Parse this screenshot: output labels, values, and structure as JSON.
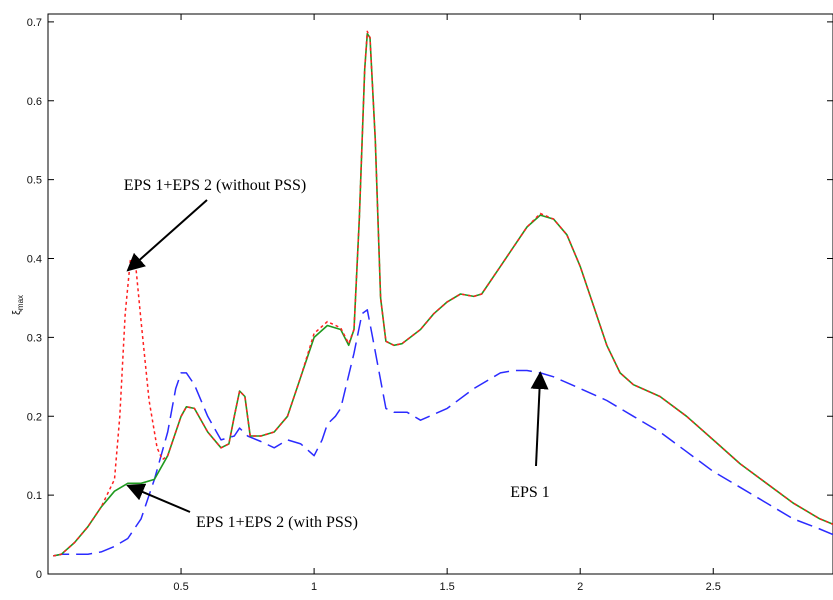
{
  "chart_data": {
    "type": "line",
    "title": "",
    "xlabel": "",
    "ylabel": "ξ",
    "ylabel_sub": "max",
    "xlim": [
      0,
      2.95
    ],
    "ylim": [
      0,
      0.71
    ],
    "grid": false,
    "x_ticks": [
      0.5,
      1,
      1.5,
      2,
      2.5
    ],
    "x_tick_labels": [
      "0.5",
      "1",
      "1.5",
      "2",
      "2.5"
    ],
    "y_ticks": [
      0,
      0.1,
      0.2,
      0.3,
      0.4,
      0.5,
      0.6,
      0.7
    ],
    "y_tick_labels": [
      "0",
      "0.1",
      "0.2",
      "0.3",
      "0.4",
      "0.5",
      "0.6",
      "0.7"
    ],
    "series": [
      {
        "name": "EPS 1",
        "color": "#2b2bff",
        "style": "dashed",
        "points": [
          [
            0.02,
            0.023
          ],
          [
            0.05,
            0.025
          ],
          [
            0.1,
            0.025
          ],
          [
            0.15,
            0.025
          ],
          [
            0.2,
            0.028
          ],
          [
            0.25,
            0.035
          ],
          [
            0.3,
            0.045
          ],
          [
            0.35,
            0.07
          ],
          [
            0.4,
            0.12
          ],
          [
            0.45,
            0.18
          ],
          [
            0.48,
            0.235
          ],
          [
            0.5,
            0.255
          ],
          [
            0.52,
            0.255
          ],
          [
            0.55,
            0.24
          ],
          [
            0.6,
            0.2
          ],
          [
            0.65,
            0.17
          ],
          [
            0.7,
            0.175
          ],
          [
            0.72,
            0.185
          ],
          [
            0.75,
            0.175
          ],
          [
            0.8,
            0.168
          ],
          [
            0.85,
            0.16
          ],
          [
            0.9,
            0.17
          ],
          [
            0.95,
            0.165
          ],
          [
            1.0,
            0.15
          ],
          [
            1.03,
            0.17
          ],
          [
            1.05,
            0.19
          ],
          [
            1.08,
            0.2
          ],
          [
            1.1,
            0.21
          ],
          [
            1.15,
            0.28
          ],
          [
            1.18,
            0.33
          ],
          [
            1.2,
            0.335
          ],
          [
            1.22,
            0.3
          ],
          [
            1.27,
            0.21
          ],
          [
            1.3,
            0.205
          ],
          [
            1.35,
            0.205
          ],
          [
            1.4,
            0.195
          ],
          [
            1.5,
            0.21
          ],
          [
            1.6,
            0.235
          ],
          [
            1.7,
            0.255
          ],
          [
            1.75,
            0.258
          ],
          [
            1.8,
            0.258
          ],
          [
            1.85,
            0.255
          ],
          [
            1.9,
            0.25
          ],
          [
            2.0,
            0.235
          ],
          [
            2.1,
            0.22
          ],
          [
            2.2,
            0.2
          ],
          [
            2.3,
            0.18
          ],
          [
            2.4,
            0.155
          ],
          [
            2.5,
            0.13
          ],
          [
            2.6,
            0.11
          ],
          [
            2.7,
            0.09
          ],
          [
            2.8,
            0.07
          ],
          [
            2.9,
            0.057
          ],
          [
            2.95,
            0.05
          ]
        ]
      },
      {
        "name": "EPS 1+EPS 2 (with PSS)",
        "color": "#1f9a1f",
        "style": "solid",
        "points": [
          [
            0.02,
            0.023
          ],
          [
            0.05,
            0.025
          ],
          [
            0.1,
            0.04
          ],
          [
            0.15,
            0.06
          ],
          [
            0.2,
            0.085
          ],
          [
            0.25,
            0.105
          ],
          [
            0.3,
            0.115
          ],
          [
            0.35,
            0.115
          ],
          [
            0.4,
            0.12
          ],
          [
            0.45,
            0.15
          ],
          [
            0.5,
            0.2
          ],
          [
            0.52,
            0.212
          ],
          [
            0.55,
            0.21
          ],
          [
            0.6,
            0.18
          ],
          [
            0.65,
            0.16
          ],
          [
            0.68,
            0.165
          ],
          [
            0.7,
            0.2
          ],
          [
            0.72,
            0.232
          ],
          [
            0.74,
            0.225
          ],
          [
            0.76,
            0.175
          ],
          [
            0.8,
            0.175
          ],
          [
            0.85,
            0.18
          ],
          [
            0.9,
            0.2
          ],
          [
            0.95,
            0.25
          ],
          [
            1.0,
            0.3
          ],
          [
            1.05,
            0.315
          ],
          [
            1.1,
            0.31
          ],
          [
            1.13,
            0.29
          ],
          [
            1.15,
            0.31
          ],
          [
            1.17,
            0.45
          ],
          [
            1.19,
            0.64
          ],
          [
            1.2,
            0.685
          ],
          [
            1.21,
            0.68
          ],
          [
            1.23,
            0.55
          ],
          [
            1.25,
            0.35
          ],
          [
            1.27,
            0.295
          ],
          [
            1.3,
            0.29
          ],
          [
            1.33,
            0.292
          ],
          [
            1.4,
            0.31
          ],
          [
            1.45,
            0.33
          ],
          [
            1.5,
            0.345
          ],
          [
            1.55,
            0.355
          ],
          [
            1.6,
            0.352
          ],
          [
            1.63,
            0.355
          ],
          [
            1.7,
            0.39
          ],
          [
            1.75,
            0.415
          ],
          [
            1.8,
            0.44
          ],
          [
            1.85,
            0.455
          ],
          [
            1.9,
            0.45
          ],
          [
            1.95,
            0.43
          ],
          [
            2.0,
            0.39
          ],
          [
            2.05,
            0.34
          ],
          [
            2.1,
            0.29
          ],
          [
            2.15,
            0.255
          ],
          [
            2.2,
            0.24
          ],
          [
            2.3,
            0.225
          ],
          [
            2.4,
            0.2
          ],
          [
            2.5,
            0.17
          ],
          [
            2.6,
            0.14
          ],
          [
            2.7,
            0.115
          ],
          [
            2.8,
            0.09
          ],
          [
            2.9,
            0.07
          ],
          [
            2.95,
            0.063
          ]
        ]
      },
      {
        "name": "EPS 1+EPS 2 (without PSS)",
        "color": "#ff2020",
        "style": "dotted",
        "points": [
          [
            0.02,
            0.023
          ],
          [
            0.05,
            0.025
          ],
          [
            0.1,
            0.04
          ],
          [
            0.15,
            0.06
          ],
          [
            0.2,
            0.085
          ],
          [
            0.25,
            0.12
          ],
          [
            0.27,
            0.2
          ],
          [
            0.29,
            0.33
          ],
          [
            0.31,
            0.4
          ],
          [
            0.33,
            0.39
          ],
          [
            0.35,
            0.32
          ],
          [
            0.38,
            0.22
          ],
          [
            0.41,
            0.16
          ],
          [
            0.43,
            0.145
          ],
          [
            0.45,
            0.15
          ],
          [
            0.5,
            0.2
          ],
          [
            0.52,
            0.212
          ],
          [
            0.55,
            0.21
          ],
          [
            0.6,
            0.18
          ],
          [
            0.65,
            0.16
          ],
          [
            0.68,
            0.165
          ],
          [
            0.7,
            0.2
          ],
          [
            0.72,
            0.232
          ],
          [
            0.74,
            0.225
          ],
          [
            0.76,
            0.175
          ],
          [
            0.8,
            0.175
          ],
          [
            0.85,
            0.18
          ],
          [
            0.9,
            0.2
          ],
          [
            0.95,
            0.25
          ],
          [
            1.0,
            0.305
          ],
          [
            1.05,
            0.32
          ],
          [
            1.1,
            0.312
          ],
          [
            1.13,
            0.292
          ],
          [
            1.15,
            0.31
          ],
          [
            1.17,
            0.45
          ],
          [
            1.19,
            0.64
          ],
          [
            1.2,
            0.688
          ],
          [
            1.21,
            0.68
          ],
          [
            1.23,
            0.55
          ],
          [
            1.25,
            0.35
          ],
          [
            1.27,
            0.295
          ],
          [
            1.3,
            0.29
          ],
          [
            1.33,
            0.292
          ],
          [
            1.4,
            0.31
          ],
          [
            1.45,
            0.33
          ],
          [
            1.5,
            0.345
          ],
          [
            1.55,
            0.355
          ],
          [
            1.6,
            0.352
          ],
          [
            1.63,
            0.355
          ],
          [
            1.7,
            0.39
          ],
          [
            1.75,
            0.415
          ],
          [
            1.8,
            0.44
          ],
          [
            1.85,
            0.457
          ],
          [
            1.9,
            0.45
          ],
          [
            1.95,
            0.43
          ],
          [
            2.0,
            0.39
          ],
          [
            2.05,
            0.34
          ],
          [
            2.1,
            0.29
          ],
          [
            2.15,
            0.255
          ],
          [
            2.2,
            0.24
          ],
          [
            2.3,
            0.225
          ],
          [
            2.4,
            0.2
          ],
          [
            2.5,
            0.17
          ],
          [
            2.6,
            0.14
          ],
          [
            2.7,
            0.115
          ],
          [
            2.8,
            0.09
          ],
          [
            2.9,
            0.07
          ],
          [
            2.95,
            0.063
          ]
        ]
      }
    ],
    "annotations": [
      {
        "text": "EPS 1+EPS 2 (without PSS)",
        "arrow_to": [
          0.3,
          0.385
        ]
      },
      {
        "text": "EPS 1+EPS 2 (with PSS)",
        "arrow_to": [
          0.3,
          0.112
        ]
      },
      {
        "text": "EPS 1",
        "arrow_to": [
          1.85,
          0.255
        ]
      }
    ]
  }
}
